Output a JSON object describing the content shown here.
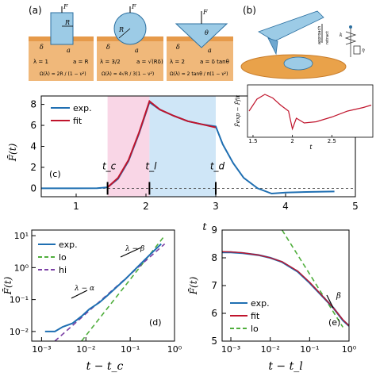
{
  "panel_labels": {
    "a": "(a)",
    "b": "(b)",
    "c": "(c)",
    "d": "(d)",
    "e": "(e)"
  },
  "schematics": {
    "force": "F",
    "radius": "R",
    "delta": "δ",
    "contact": "a",
    "angle": "θ",
    "cone_lambda": "λ = 2",
    "cone_a": "a = δ tanθ",
    "cone_omega": "Ω(λ) = 2 tanθ / π(1 − ν²)",
    "punch_lambda": "λ = 1",
    "punch_a": "a = R",
    "punch_omega": "Ω(λ) = 2R / (1 − ν²)",
    "sphere_lambda": "λ = 3/2",
    "sphere_a": "a = √(Rδ)",
    "sphere_omega": "Ω(λ) = 4√R / 3(1 − ν²)"
  },
  "experiment": {
    "approach": "approach",
    "retract": "retract",
    "spring": "k",
    "damper": "η"
  },
  "colors": {
    "exp": "#1f6fb2",
    "fit": "#c0142c",
    "lo": "#4fae3c",
    "hi": "#7b3fa5",
    "pink_band": "#f9d6e6",
    "blue_band": "#cfe6f7",
    "cell": "#e9a24a",
    "cell_dark": "#c97d2a",
    "substrate": "#f0b87a"
  },
  "chart_data": [
    {
      "id": "c",
      "type": "line",
      "xlabel": "t",
      "ylabel": "F̄(t)",
      "xlim": [
        0.5,
        5.0
      ],
      "ylim": [
        -0.8,
        8.8
      ],
      "xticks": [
        1,
        2,
        3,
        4,
        5
      ],
      "yticks": [
        0,
        2,
        4,
        6,
        8
      ],
      "legend": [
        "exp.",
        "fit"
      ],
      "legend_position": "top-left",
      "bands": [
        {
          "from": 1.45,
          "to": 2.05,
          "color": "pink"
        },
        {
          "from": 2.05,
          "to": 3.0,
          "color": "blue"
        }
      ],
      "annotations": [
        {
          "text": "t_c",
          "x": 1.45
        },
        {
          "text": "t_l",
          "x": 2.05
        },
        {
          "text": "t_d",
          "x": 3.0
        }
      ],
      "series": [
        {
          "name": "exp.",
          "x": [
            0.5,
            1.0,
            1.3,
            1.45,
            1.6,
            1.75,
            1.9,
            2.05,
            2.2,
            2.4,
            2.6,
            2.8,
            3.0,
            3.1,
            3.25,
            3.4,
            3.6,
            3.8,
            4.0,
            4.3,
            4.7
          ],
          "y": [
            0.0,
            0.0,
            0.02,
            0.1,
            0.9,
            2.6,
            5.2,
            8.2,
            7.5,
            6.9,
            6.4,
            6.1,
            5.9,
            4.2,
            2.4,
            1.0,
            0.0,
            -0.5,
            -0.4,
            -0.35,
            -0.3
          ]
        },
        {
          "name": "fit",
          "x": [
            1.45,
            1.6,
            1.75,
            1.9,
            2.05,
            2.2,
            2.4,
            2.6,
            2.8,
            3.0
          ],
          "y": [
            0.1,
            1.0,
            2.7,
            5.3,
            8.3,
            7.5,
            6.9,
            6.4,
            6.1,
            5.8
          ]
        }
      ]
    },
    {
      "id": "inset",
      "type": "line",
      "xlabel": "t",
      "ylabel": "F̄exp − F̄fit",
      "xlim": [
        1.45,
        3.0
      ],
      "ylim": [
        -1.0,
        1.0
      ],
      "xticks": [
        1.5,
        2,
        2.5
      ],
      "series": [
        {
          "name": "residual",
          "x": [
            1.45,
            1.55,
            1.65,
            1.75,
            1.85,
            1.95,
            2.0,
            2.05,
            2.15,
            2.3,
            2.5,
            2.7,
            2.9,
            3.0
          ],
          "y": [
            0.0,
            0.5,
            0.7,
            0.55,
            0.25,
            0.0,
            -0.75,
            -0.3,
            -0.5,
            -0.45,
            -0.25,
            0.0,
            0.15,
            0.25
          ]
        }
      ]
    },
    {
      "id": "d",
      "type": "line",
      "xlabel": "t − t_c",
      "ylabel": "F̄(t)",
      "xscale": "log",
      "yscale": "log",
      "xlim": [
        0.0006,
        1.0
      ],
      "ylim": [
        0.005,
        15
      ],
      "xtick_labels": [
        "10⁻³",
        "10⁻²",
        "10⁻¹",
        "10⁰"
      ],
      "ytick_labels": [
        "10⁻²",
        "10⁻¹",
        "10⁰",
        "10¹"
      ],
      "legend": [
        "exp.",
        "lo",
        "hi"
      ],
      "legend_position": "top-left",
      "annotations": [
        {
          "text": "λ − β"
        },
        {
          "text": "λ − α"
        }
      ],
      "series": [
        {
          "name": "exp.",
          "x": [
            0.0012,
            0.002,
            0.003,
            0.005,
            0.008,
            0.012,
            0.02,
            0.03,
            0.05,
            0.08,
            0.12,
            0.2,
            0.3,
            0.5
          ],
          "y": [
            0.01,
            0.01,
            0.014,
            0.018,
            0.03,
            0.05,
            0.08,
            0.13,
            0.25,
            0.45,
            0.8,
            1.6,
            2.8,
            5.5
          ]
        },
        {
          "name": "lo",
          "x": [
            0.008,
            0.6
          ],
          "y": [
            0.005,
            10.0
          ]
        },
        {
          "name": "hi",
          "x": [
            0.002,
            0.6
          ],
          "y": [
            0.005,
            5.5
          ]
        }
      ]
    },
    {
      "id": "e",
      "type": "line",
      "xlabel": "t − t_l",
      "ylabel": "F̄(t)",
      "xscale": "log",
      "xlim": [
        0.0006,
        1.0
      ],
      "ylim": [
        5.0,
        9.0
      ],
      "xtick_labels": [
        "10⁻³",
        "10⁻²",
        "10⁻¹",
        "10⁰"
      ],
      "yticks": [
        5,
        6,
        7,
        8,
        9
      ],
      "legend": [
        "exp.",
        "fit",
        "lo"
      ],
      "legend_position": "bottom-left",
      "annotations": [
        {
          "text": "β"
        }
      ],
      "series": [
        {
          "name": "exp.",
          "x": [
            0.0006,
            0.001,
            0.002,
            0.005,
            0.01,
            0.02,
            0.05,
            0.1,
            0.2,
            0.4,
            0.7,
            1.0
          ],
          "y": [
            8.2,
            8.2,
            8.17,
            8.1,
            8.0,
            7.85,
            7.5,
            7.1,
            6.65,
            6.2,
            5.75,
            5.55
          ]
        },
        {
          "name": "fit",
          "x": [
            0.0006,
            0.001,
            0.002,
            0.005,
            0.01,
            0.02,
            0.05,
            0.1,
            0.2,
            0.4,
            0.7,
            1.0
          ],
          "y": [
            8.22,
            8.21,
            8.18,
            8.1,
            8.0,
            7.86,
            7.52,
            7.12,
            6.66,
            6.2,
            5.77,
            5.55
          ]
        },
        {
          "name": "lo",
          "x": [
            0.02,
            0.7
          ],
          "y": [
            9.0,
            5.5
          ]
        }
      ]
    }
  ]
}
